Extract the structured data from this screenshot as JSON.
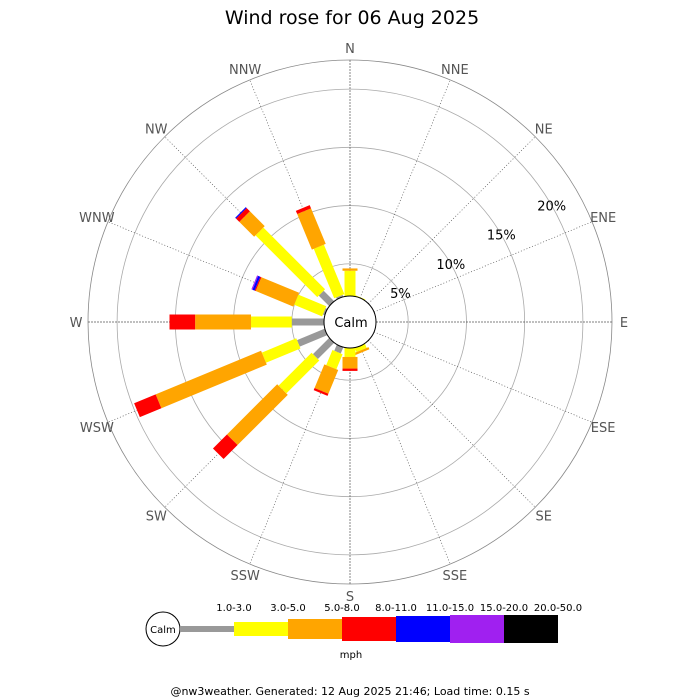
{
  "chart_data": {
    "type": "wind-rose",
    "title": "Wind rose for 06 Aug 2025",
    "directions": [
      "N",
      "NNE",
      "NE",
      "ENE",
      "E",
      "ESE",
      "SE",
      "SSE",
      "S",
      "SSW",
      "SW",
      "WSW",
      "W",
      "WNW",
      "NW",
      "NNW"
    ],
    "ring_labels": [
      "5%",
      "10%",
      "15%",
      "20%"
    ],
    "rings": [
      5,
      10,
      15,
      20
    ],
    "rmax": 22.5,
    "calm_label": "Calm",
    "calm_percent": 2,
    "bins": [
      {
        "label": "1.0-3.0",
        "color": "#999999"
      },
      {
        "label": "3.0-5.0",
        "color": "#ffff00"
      },
      {
        "label": "5.0-8.0",
        "color": "#ffa500"
      },
      {
        "label": "8.0-11.0",
        "color": "#ff0000"
      },
      {
        "label": "11.0-15.0",
        "color": "#0000ff"
      },
      {
        "label": "15.0-20.0",
        "color": "#a020f0"
      },
      {
        "label": "20.0-50.0",
        "color": "#000000"
      }
    ],
    "cumulative": {
      "N": [
        2.0,
        4.4,
        4.6,
        4.6,
        4.6,
        4.6,
        4.6
      ],
      "NNE": [
        2.0,
        2.3,
        2.3,
        2.3,
        2.3,
        2.3,
        2.3
      ],
      "NE": [
        2.0,
        2.0,
        2.0,
        2.0,
        2.0,
        2.0,
        2.0
      ],
      "ENE": [
        2.0,
        2.0,
        2.0,
        2.0,
        2.0,
        2.0,
        2.0
      ],
      "E": [
        2.0,
        2.2,
        2.2,
        2.2,
        2.2,
        2.2,
        2.2
      ],
      "ESE": [
        2.0,
        2.0,
        2.0,
        2.0,
        2.0,
        2.0,
        2.0
      ],
      "SE": [
        2.0,
        2.0,
        2.0,
        2.0,
        2.0,
        2.0,
        2.0
      ],
      "SSE": [
        2.0,
        2.6,
        2.8,
        2.8,
        2.8,
        2.8,
        2.8
      ],
      "S": [
        2.0,
        3.0,
        4.0,
        4.2,
        4.2,
        4.2,
        4.2
      ],
      "SSW": [
        2.8,
        4.2,
        6.4,
        6.6,
        6.6,
        6.6,
        6.6
      ],
      "SW": [
        4.2,
        8.2,
        14.3,
        16.0,
        16.0,
        16.0,
        16.0
      ],
      "WSW": [
        4.8,
        8.0,
        17.8,
        19.8,
        19.8,
        19.8,
        19.8
      ],
      "W": [
        5.0,
        8.5,
        13.3,
        15.5,
        15.5,
        15.5,
        15.5
      ],
      "WNW": [
        2.4,
        5.0,
        8.5,
        8.6,
        8.8,
        8.9,
        8.9
      ],
      "NW": [
        3.5,
        11.0,
        12.8,
        13.2,
        13.3,
        13.3,
        13.3
      ],
      "NNW": [
        2.4,
        7.0,
        10.3,
        10.6,
        10.6,
        10.6,
        10.6
      ]
    },
    "legend_unit": "mph"
  },
  "footer": "@nw3weather.  Generated: 12 Aug 2025 21:46; Load time: 0.15 s"
}
